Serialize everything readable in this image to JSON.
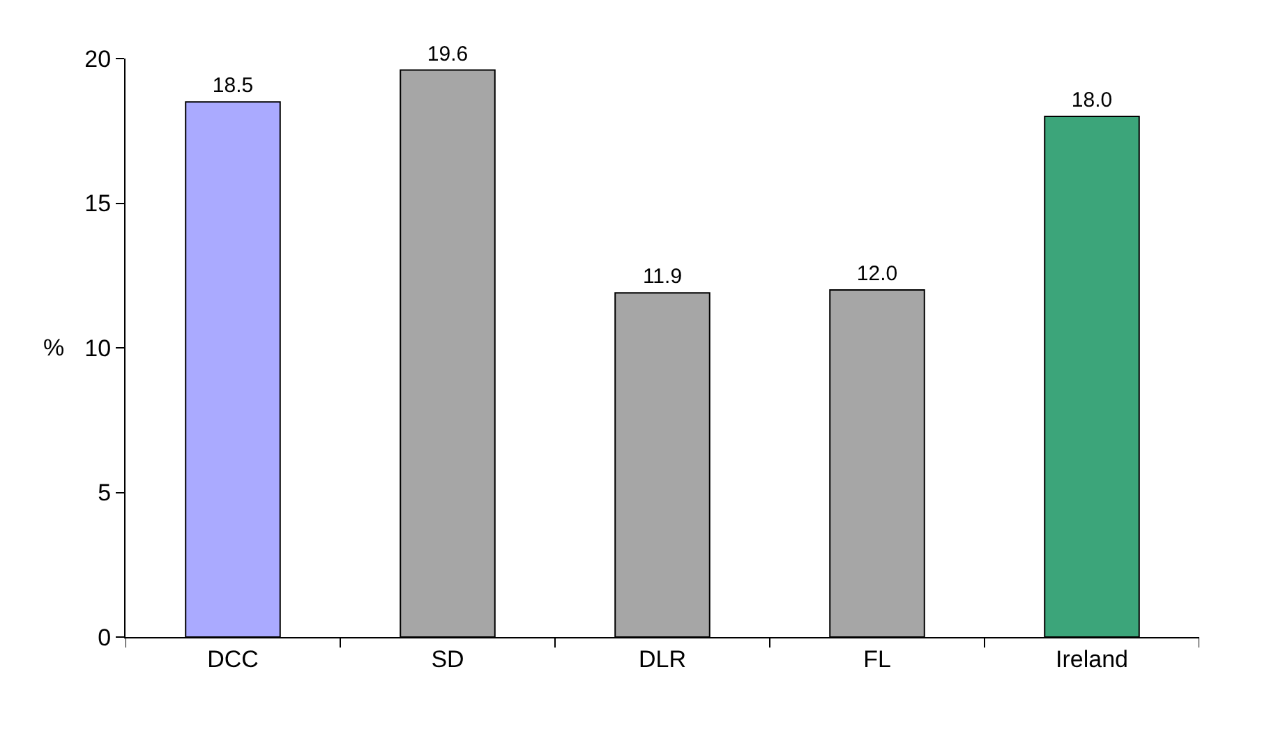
{
  "chart_data": {
    "type": "bar",
    "ylabel": "%",
    "categories": [
      "DCC",
      "SD",
      "DLR",
      "FL",
      "Ireland"
    ],
    "values": [
      18.5,
      19.6,
      11.9,
      12.0,
      18.0
    ],
    "colors": [
      "#aaaaff",
      "#a6a6a6",
      "#a6a6a6",
      "#a6a6a6",
      "#3ca57a"
    ],
    "value_labels": [
      "18.5",
      "19.6",
      "11.9",
      "12.0",
      "18.0"
    ],
    "ylim": [
      0,
      20
    ],
    "yticks": [
      0,
      5,
      10,
      15,
      20
    ],
    "grid": false,
    "legend": false
  }
}
